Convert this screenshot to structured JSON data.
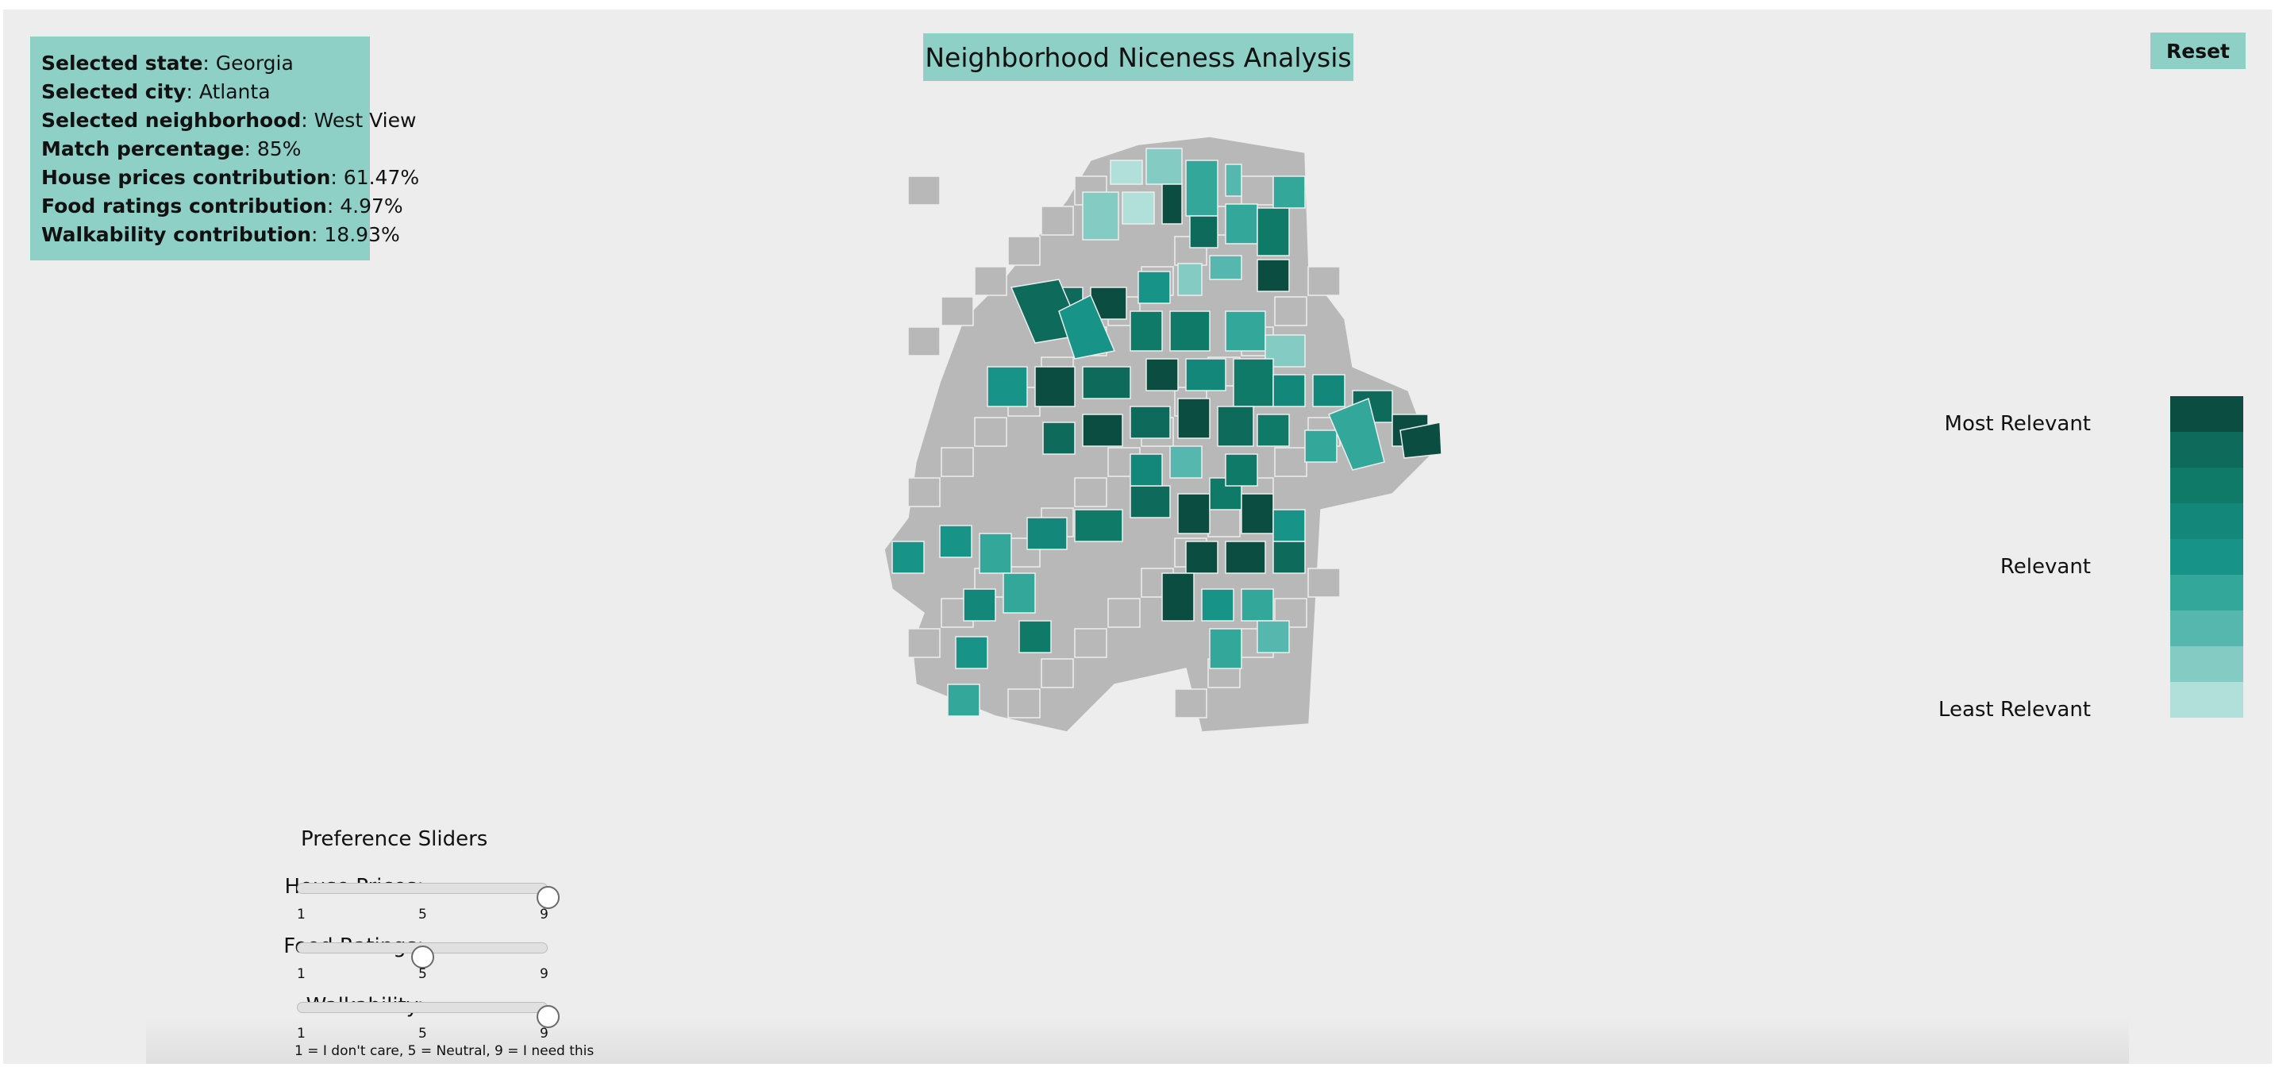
{
  "info": {
    "state_label": "Selected state",
    "state_value": "Georgia",
    "city_label": "Selected city",
    "city_value": "Atlanta",
    "neighborhood_label": "Selected neighborhood",
    "neighborhood_value": "West View",
    "match_label": "Match percentage",
    "match_value": "85%",
    "house_label": "House prices contribution",
    "house_value": "61.47%",
    "food_label": "Food ratings contribution",
    "food_value": "4.97%",
    "walk_label": "Walkability contribution",
    "walk_value": "18.93%"
  },
  "title": "Neighborhood Niceness Analysis",
  "reset_label": "Reset",
  "legend": {
    "labels": {
      "most": "Most Relevant",
      "mid": "Relevant",
      "least": "Least Relevant"
    },
    "colors": [
      "#0b4d41",
      "#0e6a5b",
      "#107a68",
      "#13877a",
      "#179487",
      "#33a79a",
      "#55b7ad",
      "#84ccc3",
      "#b1e0da"
    ]
  },
  "map_colors": {
    "unselected": "#b8b8b8",
    "scale": [
      "#0b4d41",
      "#0e6a5b",
      "#107a68",
      "#13877a",
      "#179487",
      "#33a79a",
      "#55b7ad",
      "#84ccc3",
      "#b1e0da"
    ]
  },
  "sliders": {
    "title": "Preference Sliders",
    "house": {
      "label": "House Prices:",
      "value": 9
    },
    "food": {
      "label": "Food Ratings:",
      "value": 5
    },
    "walk": {
      "label": "Walkability:",
      "value": 9
    },
    "ticks": [
      "1",
      "5",
      "9"
    ],
    "min": 1,
    "max": 9,
    "note": "1 = I don't care, 5 = Neutral, 9 = I need this"
  }
}
